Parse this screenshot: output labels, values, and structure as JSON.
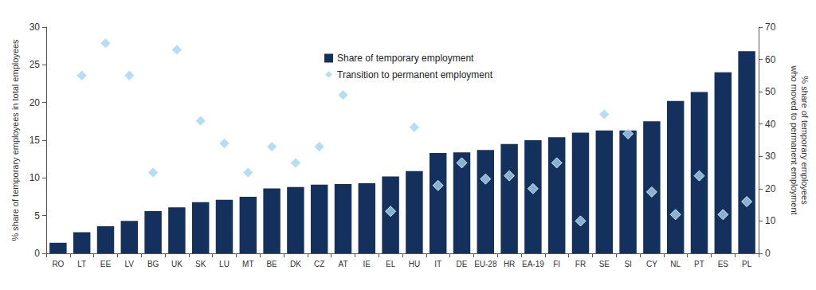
{
  "chart_data": {
    "type": "bar",
    "categories": [
      "RO",
      "LT",
      "EE",
      "LV",
      "BG",
      "UK",
      "SK",
      "LU",
      "MT",
      "BE",
      "DK",
      "CZ",
      "AT",
      "IE",
      "EL",
      "HU",
      "IT",
      "DE",
      "EU-28",
      "HR",
      "EA-19",
      "FI",
      "FR",
      "SE",
      "SI",
      "CY",
      "NL",
      "PT",
      "ES",
      "PL"
    ],
    "series": [
      {
        "name": "Share of temporary employment",
        "type": "bar",
        "color": "#14305c",
        "values": [
          1.4,
          2.8,
          3.6,
          4.3,
          5.6,
          6.1,
          6.8,
          7.1,
          7.5,
          8.6,
          8.8,
          9.1,
          9.2,
          9.3,
          10.2,
          10.9,
          13.3,
          13.4,
          13.7,
          14.5,
          15.0,
          15.4,
          16.0,
          16.3,
          16.3,
          17.5,
          20.2,
          21.4,
          24.0,
          26.8
        ]
      },
      {
        "name": "Transition to permanent employment",
        "type": "scatter",
        "axis": "y2",
        "marker": "diamond",
        "color": "#a3d5f2",
        "values": [
          null,
          55,
          65,
          55,
          25,
          63,
          41,
          34,
          25,
          33,
          28,
          33,
          49,
          null,
          13,
          39,
          21,
          28,
          23,
          24,
          20,
          28,
          10,
          43,
          37,
          19,
          12,
          24,
          12,
          16
        ]
      }
    ],
    "y_label": "% share of temporary employees in total employees",
    "y2_label": "% share of temporary employees who moved to permanent employment",
    "ylim": [
      0,
      30
    ],
    "yticks": [
      0,
      5,
      10,
      15,
      20,
      25,
      30
    ],
    "y2lim": [
      0,
      70
    ],
    "y2ticks": [
      0,
      10,
      20,
      30,
      40,
      50,
      60,
      70
    ],
    "grid": false,
    "legend": "top"
  }
}
